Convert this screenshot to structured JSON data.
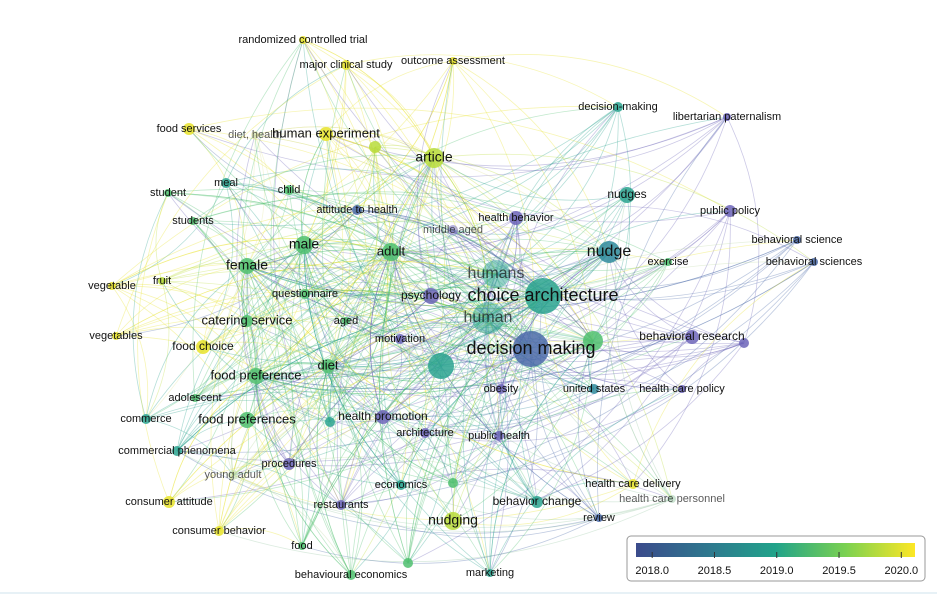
{
  "nodes": [
    {
      "label": "randomized controlled trial"
    },
    {
      "label": "major clinical study"
    },
    {
      "label": "outcome assessment"
    },
    {
      "label": "decision-making"
    },
    {
      "label": "libertarian paternalism"
    },
    {
      "label": "food services"
    },
    {
      "label": "diet, health"
    },
    {
      "label": "human experiment"
    },
    {
      "label": "article"
    },
    {
      "label": "meal"
    },
    {
      "label": "child"
    },
    {
      "label": "student"
    },
    {
      "label": "nudges"
    },
    {
      "label": "attitude to health"
    },
    {
      "label": "health behavior"
    },
    {
      "label": "public policy"
    },
    {
      "label": "students"
    },
    {
      "label": "middle aged"
    },
    {
      "label": "behavioral science"
    },
    {
      "label": "male"
    },
    {
      "label": "adult"
    },
    {
      "label": "nudge"
    },
    {
      "label": "female"
    },
    {
      "label": "humans"
    },
    {
      "label": "exercise"
    },
    {
      "label": "behavioral sciences"
    },
    {
      "label": "vegetable"
    },
    {
      "label": "fruit"
    },
    {
      "label": "questionnaire"
    },
    {
      "label": "psychology"
    },
    {
      "label": "choice architecture"
    },
    {
      "label": "human"
    },
    {
      "label": "aged"
    },
    {
      "label": "catering service"
    },
    {
      "label": "vegetables"
    },
    {
      "label": "behavioral research"
    },
    {
      "label": "motivation"
    },
    {
      "label": "food choice"
    },
    {
      "label": "decision making"
    },
    {
      "label": "diet"
    },
    {
      "label": "food preference"
    },
    {
      "label": "adolescent"
    },
    {
      "label": "obesity"
    },
    {
      "label": "united states"
    },
    {
      "label": "health care policy"
    },
    {
      "label": "commerce"
    },
    {
      "label": "food preferences"
    },
    {
      "label": "health promotion"
    },
    {
      "label": "architecture"
    },
    {
      "label": "public health"
    },
    {
      "label": "commercial phenomena"
    },
    {
      "label": "procedures"
    },
    {
      "label": "young adult"
    },
    {
      "label": "health care delivery"
    },
    {
      "label": "economics"
    },
    {
      "label": "health care personnel"
    },
    {
      "label": "behavior change"
    },
    {
      "label": "consumer attitude"
    },
    {
      "label": "restaurants"
    },
    {
      "label": "review"
    },
    {
      "label": "nudging"
    },
    {
      "label": "consumer behavior"
    },
    {
      "label": "food"
    },
    {
      "label": "behavioural economics"
    },
    {
      "label": "marketing"
    }
  ],
  "colorbar": {
    "lim": [
      2017.87,
      2020.11
    ],
    "ticks": [
      {
        "value": 2018,
        "label": "2018.0"
      },
      {
        "value": 2018.5,
        "label": "2018.5"
      },
      {
        "value": 2019,
        "label": "2019.0"
      },
      {
        "value": 2019.5,
        "label": "2019.5"
      },
      {
        "value": 2020,
        "label": "2020.0"
      }
    ]
  }
}
